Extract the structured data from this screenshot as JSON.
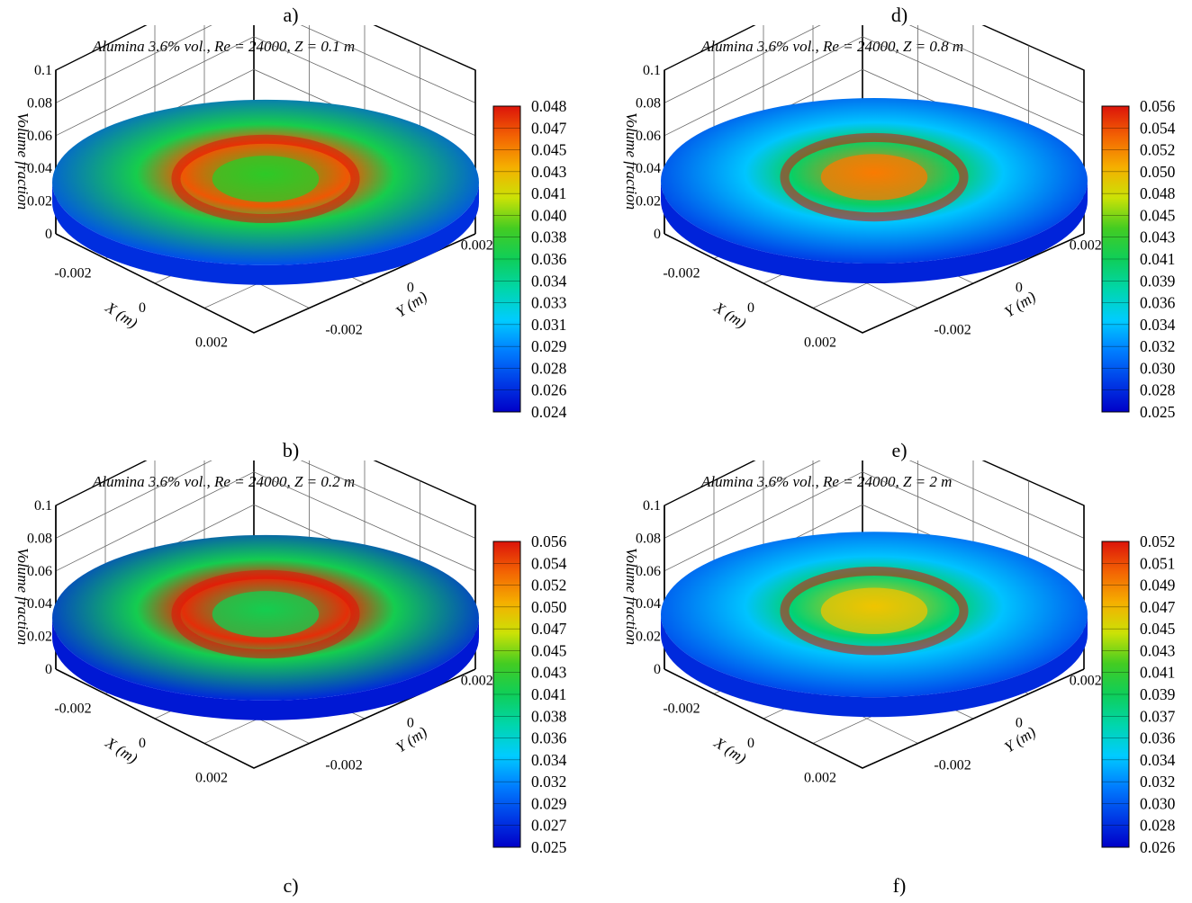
{
  "figure": {
    "top_letters": [
      "a)",
      "d)"
    ],
    "bottom_letter_left": "c)",
    "bottom_letter_right": "f)"
  },
  "chart_data": [
    {
      "type": "surface3d",
      "panel": "a)",
      "title": "Alumina 3.6% vol., Re = 24000, Z = 0.1 m",
      "xlabel": "X (m)",
      "ylabel": "Y (m)",
      "zlabel": "Volume fraction",
      "x_ticks": [
        "-0.002",
        "0",
        "0.002"
      ],
      "y_ticks": [
        "-0.002",
        "0",
        "0.002"
      ],
      "z_ticks": [
        "0",
        "0.02",
        "0.04",
        "0.06",
        "0.08",
        "0.1"
      ],
      "zlim": [
        0,
        0.1
      ],
      "colorbar": [
        "0.048",
        "0.047",
        "0.045",
        "0.043",
        "0.041",
        "0.040",
        "0.038",
        "0.036",
        "0.034",
        "0.033",
        "0.031",
        "0.029",
        "0.028",
        "0.026",
        "0.024"
      ],
      "surface": {
        "edge_value": 0.027,
        "ring_value": 0.046,
        "center_value": 0.038,
        "hotspot_value": 0.048
      }
    },
    {
      "type": "surface3d",
      "panel": "b)",
      "title": "Alumina 3.6% vol., Re = 24000, Z = 0.2 m",
      "xlabel": "X (m)",
      "ylabel": "Y (m)",
      "zlabel": "Volume fraction",
      "x_ticks": [
        "-0.002",
        "0",
        "0.002"
      ],
      "y_ticks": [
        "-0.002",
        "0",
        "0.002"
      ],
      "z_ticks": [
        "0",
        "0.02",
        "0.04",
        "0.06",
        "0.08",
        "0.1"
      ],
      "zlim": [
        0,
        0.1
      ],
      "colorbar": [
        "0.056",
        "0.054",
        "0.052",
        "0.050",
        "0.047",
        "0.045",
        "0.043",
        "0.041",
        "0.038",
        "0.036",
        "0.034",
        "0.032",
        "0.029",
        "0.027",
        "0.025"
      ],
      "surface": {
        "edge_value": 0.027,
        "ring_value": 0.055,
        "center_value": 0.041,
        "hotspot_value": 0.056
      }
    },
    {
      "type": "surface3d",
      "panel": "d)",
      "title": "Alumina 3.6% vol., Re = 24000, Z = 0.8 m",
      "xlabel": "X (m)",
      "ylabel": "Y (m)",
      "zlabel": "Volume fraction",
      "x_ticks": [
        "-0.002",
        "0",
        "0.002"
      ],
      "y_ticks": [
        "-0.002",
        "0",
        "0.002"
      ],
      "z_ticks": [
        "0",
        "0.02",
        "0.04",
        "0.06",
        "0.08",
        "0.1"
      ],
      "zlim": [
        0,
        0.1
      ],
      "colorbar": [
        "0.056",
        "0.054",
        "0.052",
        "0.050",
        "0.048",
        "0.045",
        "0.043",
        "0.041",
        "0.039",
        "0.036",
        "0.034",
        "0.032",
        "0.030",
        "0.028",
        "0.025"
      ],
      "surface": {
        "edge_value": 0.028,
        "ring_value": 0.04,
        "center_value": 0.052,
        "hotspot_value": 0.056
      }
    },
    {
      "type": "surface3d",
      "panel": "e)",
      "title": "Alumina 3.6% vol., Re = 24000, Z = 2 m",
      "xlabel": "X (m)",
      "ylabel": "Y (m)",
      "zlabel": "Volume fraction",
      "x_ticks": [
        "-0.002",
        "0",
        "0.002"
      ],
      "y_ticks": [
        "-0.002",
        "0",
        "0.002"
      ],
      "z_ticks": [
        "0",
        "0.02",
        "0.04",
        "0.06",
        "0.08",
        "0.1"
      ],
      "zlim": [
        0,
        0.1
      ],
      "colorbar": [
        "0.052",
        "0.051",
        "0.049",
        "0.047",
        "0.045",
        "0.043",
        "0.041",
        "0.039",
        "0.037",
        "0.036",
        "0.034",
        "0.032",
        "0.030",
        "0.028",
        "0.026"
      ],
      "surface": {
        "edge_value": 0.029,
        "ring_value": 0.038,
        "center_value": 0.046,
        "hotspot_value": 0.052
      }
    }
  ]
}
